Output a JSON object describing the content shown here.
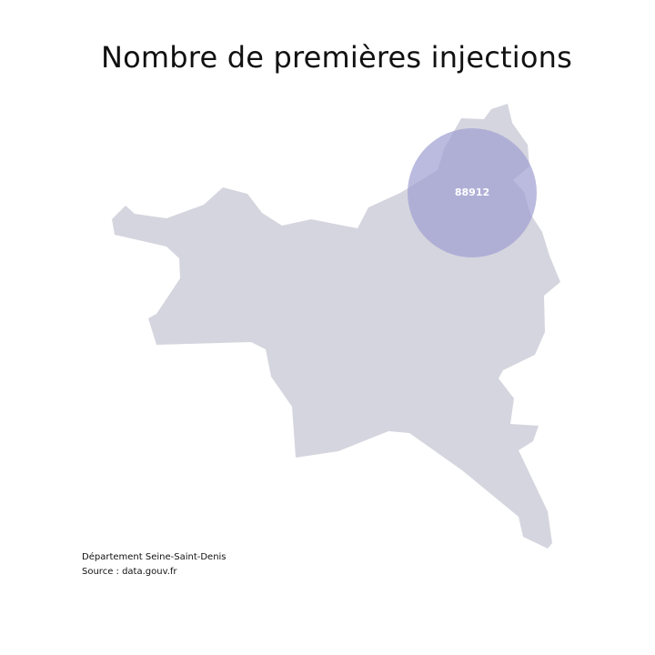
{
  "title": "Nombre de premières injections",
  "colors": {
    "region_fill": "#d5d5df",
    "marker_fill": "#9e9ed2",
    "marker_text": "#ffffff"
  },
  "marker": {
    "value": "88912"
  },
  "footnotes": {
    "department": "Département Seine-Saint-Denis",
    "source": "Source : data.gouv.fr"
  }
}
